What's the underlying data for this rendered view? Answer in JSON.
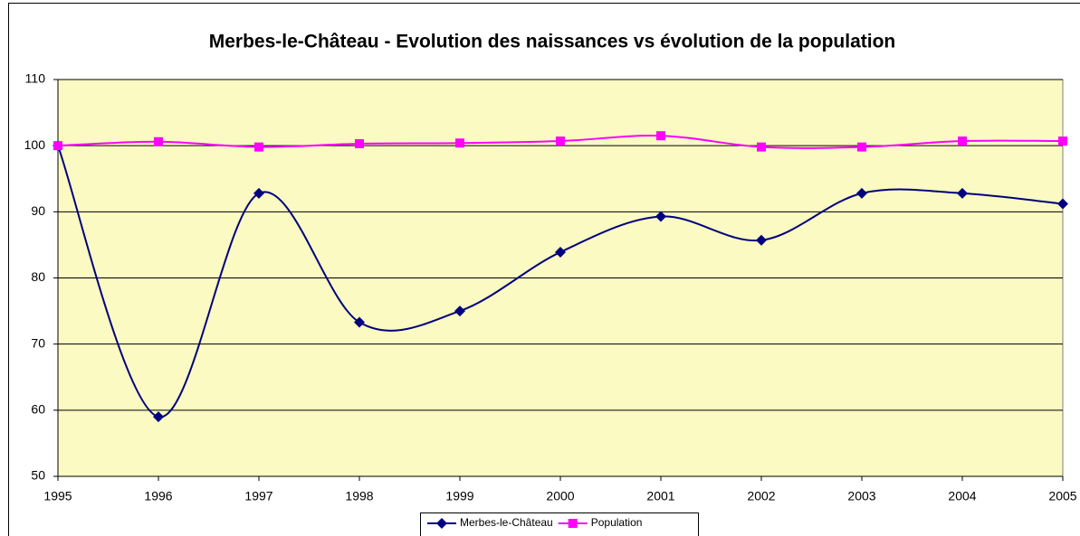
{
  "chart_data": {
    "type": "line",
    "title": "Merbes-le-Château - Evolution des naissances vs évolution de la population",
    "x": [
      1995,
      1996,
      1997,
      1998,
      1999,
      2000,
      2001,
      2002,
      2003,
      2004,
      2005
    ],
    "xlim": [
      1995,
      2005
    ],
    "xticks": [
      1995,
      1996,
      1997,
      1998,
      1999,
      2000,
      2001,
      2002,
      2003,
      2004,
      2005
    ],
    "ylim": [
      50,
      110
    ],
    "yticks": [
      50,
      60,
      70,
      80,
      90,
      100,
      110
    ],
    "grid": true,
    "smooth": true,
    "legend": "bottom",
    "series": [
      {
        "name": "Merbes-le-Château",
        "color": "#000080",
        "marker": "diamond",
        "values": [
          100,
          59,
          92.8,
          73.3,
          75,
          83.9,
          89.3,
          85.7,
          92.8,
          92.8,
          91.2
        ]
      },
      {
        "name": "Population",
        "color": "#ff00ff",
        "marker": "square",
        "values": [
          100,
          100.6,
          99.8,
          100.3,
          100.4,
          100.7,
          101.5,
          99.8,
          99.8,
          100.7,
          100.7
        ]
      }
    ]
  }
}
